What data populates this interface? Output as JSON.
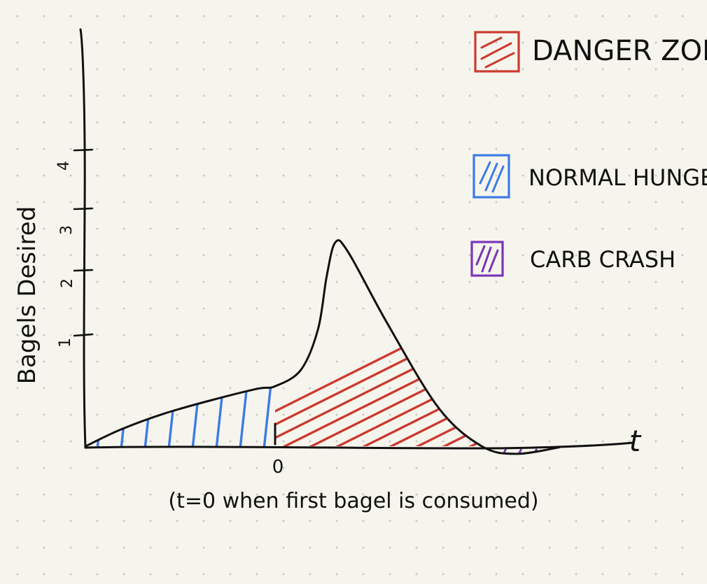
{
  "chart_data": {
    "type": "area",
    "xlabel": "t",
    "ylabel": "Bagels Desired",
    "x_ticks": [
      "0"
    ],
    "y_ticks": [
      "1",
      "2",
      "3",
      "4"
    ],
    "ylim": [
      0,
      4.5
    ],
    "annotation": "(t=0 when first bagel is consumed)",
    "legend_position": "top-right",
    "legend": [
      {
        "label": "DANGER ZONE",
        "color": "#cc3a2f"
      },
      {
        "label": "NORMAL HUNGER",
        "color": "#3b7be6"
      },
      {
        "label": "CARB CRASH",
        "color": "#7a35b8"
      }
    ],
    "curve": [
      {
        "x": -2.2,
        "y": 0.0
      },
      {
        "x": -1.8,
        "y": 0.28
      },
      {
        "x": -1.3,
        "y": 0.55
      },
      {
        "x": -0.75,
        "y": 0.78
      },
      {
        "x": -0.2,
        "y": 0.98
      },
      {
        "x": 0.0,
        "y": 1.02
      },
      {
        "x": 0.3,
        "y": 1.3
      },
      {
        "x": 0.5,
        "y": 2.0
      },
      {
        "x": 0.6,
        "y": 2.9
      },
      {
        "x": 0.7,
        "y": 3.47
      },
      {
        "x": 0.85,
        "y": 3.3
      },
      {
        "x": 1.3,
        "y": 2.1
      },
      {
        "x": 1.9,
        "y": 0.65
      },
      {
        "x": 2.4,
        "y": 0.0
      },
      {
        "x": 2.8,
        "y": -0.13
      },
      {
        "x": 3.3,
        "y": -0.02
      }
    ],
    "regions": [
      {
        "name": "NORMAL HUNGER",
        "x_range": [
          -2.2,
          0.0
        ],
        "color": "#3b7be6"
      },
      {
        "name": "DANGER ZONE",
        "x_range": [
          0.0,
          2.4
        ],
        "color": "#cc3a2f"
      },
      {
        "name": "CARB CRASH",
        "x_range": [
          2.4,
          3.3
        ],
        "color": "#7a35b8"
      }
    ]
  }
}
